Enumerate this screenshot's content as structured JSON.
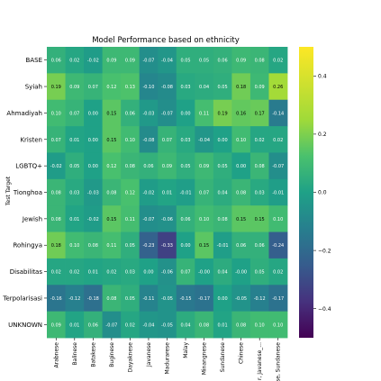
{
  "chart_data": {
    "type": "heatmap",
    "title": "Model Performance based on ethnicity",
    "ylabel": "Test Target",
    "xlabel": "",
    "rows": [
      "BASE",
      "Syiah",
      "Ahmadiyah",
      "Kristen",
      "LGBTQ+",
      "Tionghoa",
      "Jewish",
      "Rohingya",
      "Disabilitas",
      "Terpolarisasi",
      "UNKNOWN"
    ],
    "cols": [
      "Arabnese",
      "Balinese",
      "Batakese",
      "Buginese",
      "Dayaknese",
      "Javanese",
      "Madurarese",
      "Malay",
      "Minangnese",
      "Sundanese",
      "Chinese",
      "r, Javanese_...",
      "se, Sundanese"
    ],
    "values": [
      [
        0.06,
        0.02,
        -0.02,
        0.09,
        0.09,
        -0.07,
        -0.04,
        0.05,
        0.05,
        0.06,
        0.09,
        0.08,
        0.02
      ],
      [
        0.19,
        0.09,
        0.07,
        0.12,
        0.13,
        -0.1,
        -0.08,
        0.03,
        0.04,
        0.05,
        0.18,
        0.09,
        0.26
      ],
      [
        0.1,
        0.07,
        0.0,
        0.15,
        0.06,
        -0.03,
        -0.07,
        0.0,
        0.11,
        0.19,
        0.16,
        0.17,
        -0.14
      ],
      [
        0.07,
        0.01,
        0.0,
        0.15,
        0.1,
        -0.08,
        0.07,
        0.03,
        -0.04,
        0.0,
        0.1,
        0.02,
        0.02
      ],
      [
        -0.02,
        0.05,
        0.0,
        0.12,
        0.08,
        0.06,
        0.09,
        0.05,
        0.09,
        0.05,
        0.0,
        0.08,
        -0.07
      ],
      [
        0.08,
        0.03,
        -0.03,
        0.08,
        0.12,
        -0.02,
        0.01,
        -0.01,
        0.07,
        0.04,
        0.08,
        0.03,
        -0.01
      ],
      [
        0.08,
        0.01,
        -0.02,
        0.15,
        0.11,
        -0.07,
        -0.06,
        0.06,
        0.1,
        0.08,
        0.15,
        0.15,
        0.1
      ],
      [
        0.18,
        0.1,
        0.08,
        0.11,
        0.05,
        -0.23,
        -0.33,
        0.0,
        0.15,
        -0.01,
        0.06,
        0.06,
        -0.24
      ],
      [
        0.02,
        0.02,
        0.01,
        0.02,
        0.03,
        0.0,
        -0.06,
        0.07,
        -0.0,
        0.04,
        -0.0,
        0.05,
        0.02
      ],
      [
        -0.16,
        -0.12,
        -0.18,
        0.08,
        0.05,
        -0.11,
        -0.05,
        -0.15,
        -0.17,
        0.0,
        -0.05,
        -0.12,
        -0.17
      ],
      [
        0.09,
        0.01,
        0.06,
        -0.07,
        0.02,
        -0.04,
        -0.05,
        0.04,
        0.08,
        0.01,
        0.08,
        0.1,
        0.1
      ]
    ],
    "colorbar": {
      "min": -0.5,
      "max": 0.5,
      "ticks": [
        0.4,
        0.2,
        0.0,
        -0.2,
        -0.4
      ],
      "tick_labels": [
        "0.4",
        "0.2",
        "0.0",
        "−0.2",
        "−0.4"
      ]
    },
    "colormap": "viridis",
    "grid": false,
    "legend": "none"
  }
}
